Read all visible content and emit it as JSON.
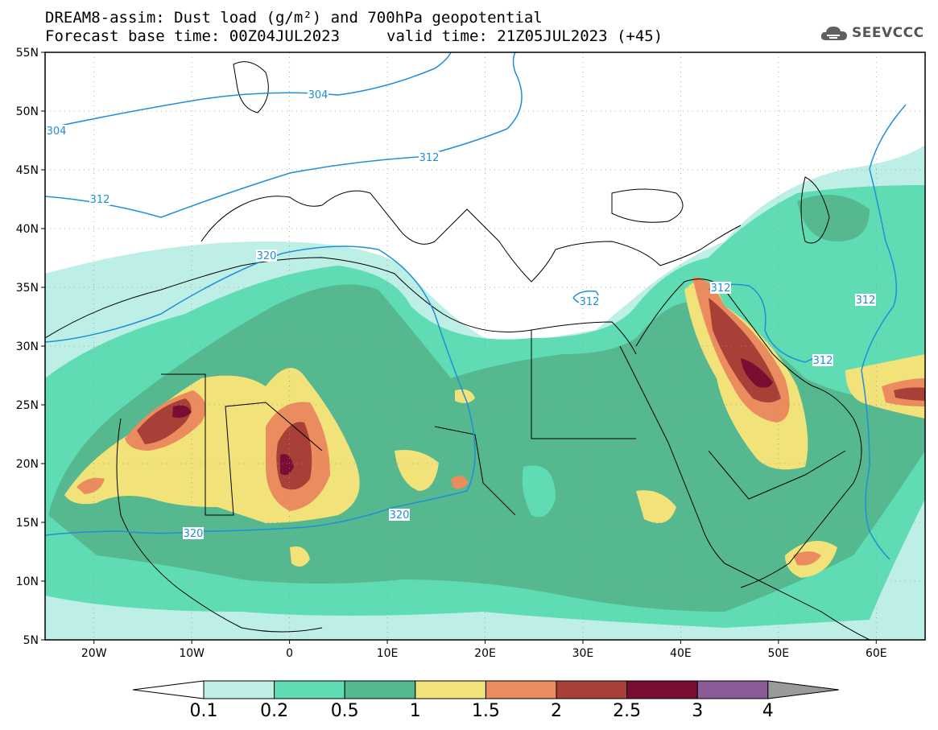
{
  "header": {
    "title_line1": "DREAM8-assim: Dust load (g/m²) and 700hPa geopotential",
    "title_line2": "Forecast base time: 00Z04JUL2023",
    "valid_time": "valid time: 21Z05JUL2023 (+45)",
    "logo_text": "SEEVCCC",
    "logo_icon": "cloud-icon"
  },
  "axes": {
    "lat_labels": [
      "55N",
      "50N",
      "45N",
      "40N",
      "35N",
      "30N",
      "25N",
      "20N",
      "15N",
      "10N",
      "5N"
    ],
    "lon_labels": [
      "20W",
      "10W",
      "0",
      "10E",
      "20E",
      "30E",
      "40E",
      "50E",
      "60E"
    ]
  },
  "colorbar": {
    "labels": [
      "0.1",
      "0.2",
      "0.5",
      "1",
      "1.5",
      "2",
      "2.5",
      "3",
      "4"
    ],
    "colors": [
      "#ffffff",
      "#bdefe6",
      "#5fdcb4",
      "#55b88f",
      "#f2e27a",
      "#ea8c5e",
      "#a84038",
      "#7a0e32",
      "#8a5b98",
      "#9a9a9a"
    ]
  },
  "contours": {
    "labels": [
      "304",
      "304",
      "312",
      "312",
      "312",
      "312",
      "312",
      "312",
      "320",
      "320",
      "320"
    ],
    "color": "#1f8fd8"
  }
}
